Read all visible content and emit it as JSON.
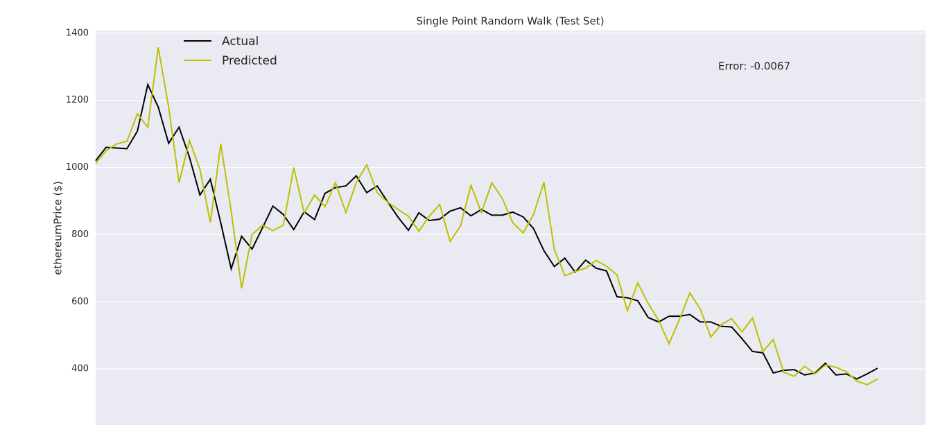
{
  "chart_data": {
    "type": "line",
    "title": "Single Point Random Walk (Test Set)",
    "ylabel": "ethereumPrice ($)",
    "annotation": "Error: -0.0067",
    "x": [
      0,
      1,
      2,
      3,
      4,
      5,
      6,
      7,
      8,
      9,
      10,
      11,
      12,
      13,
      14,
      15,
      16,
      17,
      18,
      19,
      20,
      21,
      22,
      23,
      24,
      25,
      26,
      27,
      28,
      29,
      30,
      31,
      32,
      33,
      34,
      35,
      36,
      37,
      38,
      39,
      40,
      41,
      42,
      43,
      44,
      45,
      46,
      47,
      48,
      49,
      50,
      51,
      52,
      53,
      54,
      55,
      56,
      57,
      58,
      59,
      60,
      61,
      62,
      63,
      64,
      65,
      66,
      67,
      68,
      69,
      70,
      71,
      72,
      73,
      74,
      75
    ],
    "xlim": [
      0,
      79.6
    ],
    "ylim": [
      233,
      1408
    ],
    "yticks": [
      400,
      600,
      800,
      1000,
      1200,
      1400
    ],
    "grid": true,
    "legend": "upper left",
    "series": [
      {
        "name": "Actual",
        "color": "#000000",
        "values": [
          1020,
          1060,
          1058,
          1056,
          1108,
          1247,
          1180,
          1072,
          1120,
          1030,
          918,
          965,
          835,
          698,
          795,
          757,
          820,
          885,
          860,
          815,
          868,
          845,
          923,
          940,
          945,
          975,
          925,
          945,
          898,
          852,
          813,
          865,
          842,
          846,
          870,
          880,
          856,
          875,
          858,
          858,
          867,
          853,
          818,
          752,
          705,
          730,
          688,
          724,
          700,
          692,
          615,
          612,
          603,
          553,
          540,
          557,
          557,
          562,
          540,
          540,
          527,
          525,
          490,
          452,
          448,
          388,
          396,
          398,
          382,
          388,
          417,
          382,
          385,
          370,
          385,
          402
        ]
      },
      {
        "name": "Predicted",
        "color": "#bfbf00",
        "values": [
          1012,
          1050,
          1070,
          1078,
          1160,
          1120,
          1358,
          1180,
          955,
          1080,
          995,
          836,
          1070,
          870,
          640,
          800,
          828,
          812,
          828,
          1000,
          865,
          918,
          883,
          955,
          866,
          955,
          1008,
          925,
          897,
          875,
          855,
          810,
          855,
          890,
          780,
          826,
          947,
          866,
          954,
          908,
          836,
          805,
          860,
          956,
          755,
          678,
          690,
          700,
          723,
          706,
          680,
          573,
          656,
          595,
          545,
          475,
          548,
          626,
          578,
          495,
          532,
          550,
          510,
          552,
          452,
          487,
          390,
          378,
          408,
          385,
          412,
          405,
          392,
          364,
          353,
          370
        ]
      }
    ]
  }
}
